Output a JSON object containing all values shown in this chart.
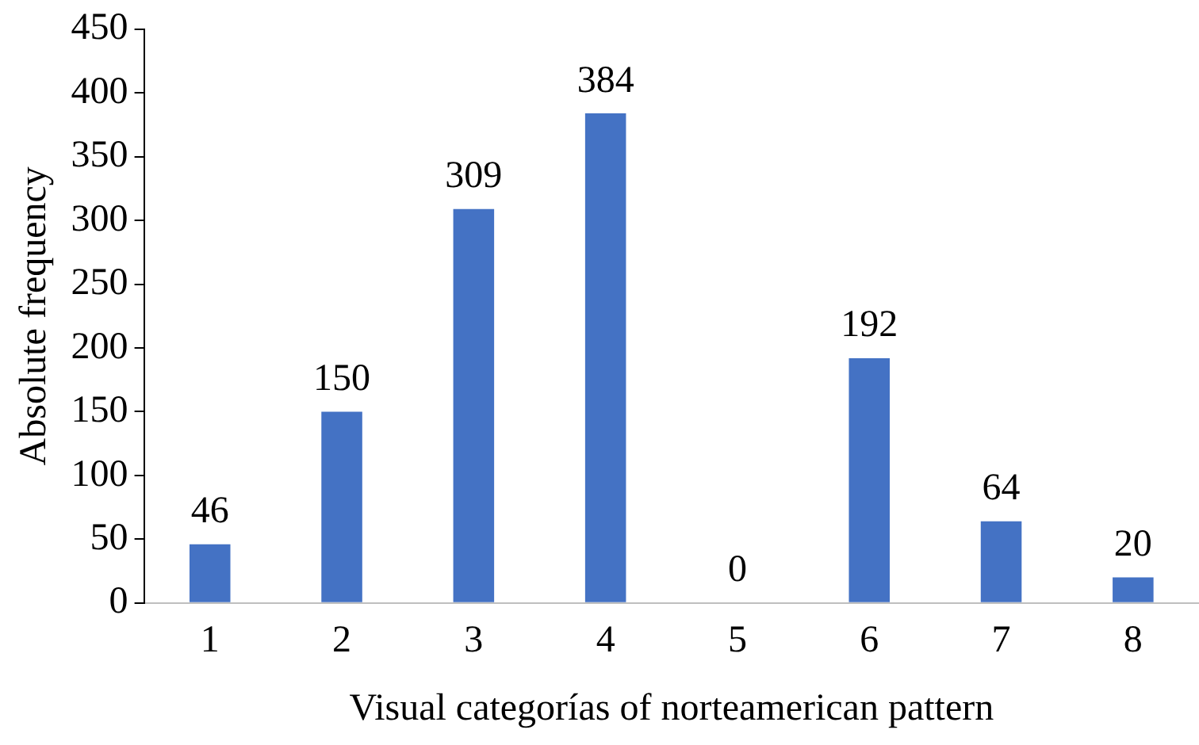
{
  "chart_data": {
    "type": "bar",
    "xlabel": "Visual categorías of norteamerican pattern",
    "ylabel": "Absolute frequency",
    "categories": [
      "1",
      "2",
      "3",
      "4",
      "5",
      "6",
      "7",
      "8"
    ],
    "values": [
      46,
      150,
      309,
      384,
      0,
      192,
      64,
      20
    ],
    "color": "#4472c4",
    "ylim": [
      0,
      450
    ],
    "yticks": [
      0,
      50,
      100,
      150,
      200,
      250,
      300,
      350,
      400,
      450
    ],
    "grid": false,
    "legend": false,
    "data_labels": true
  }
}
